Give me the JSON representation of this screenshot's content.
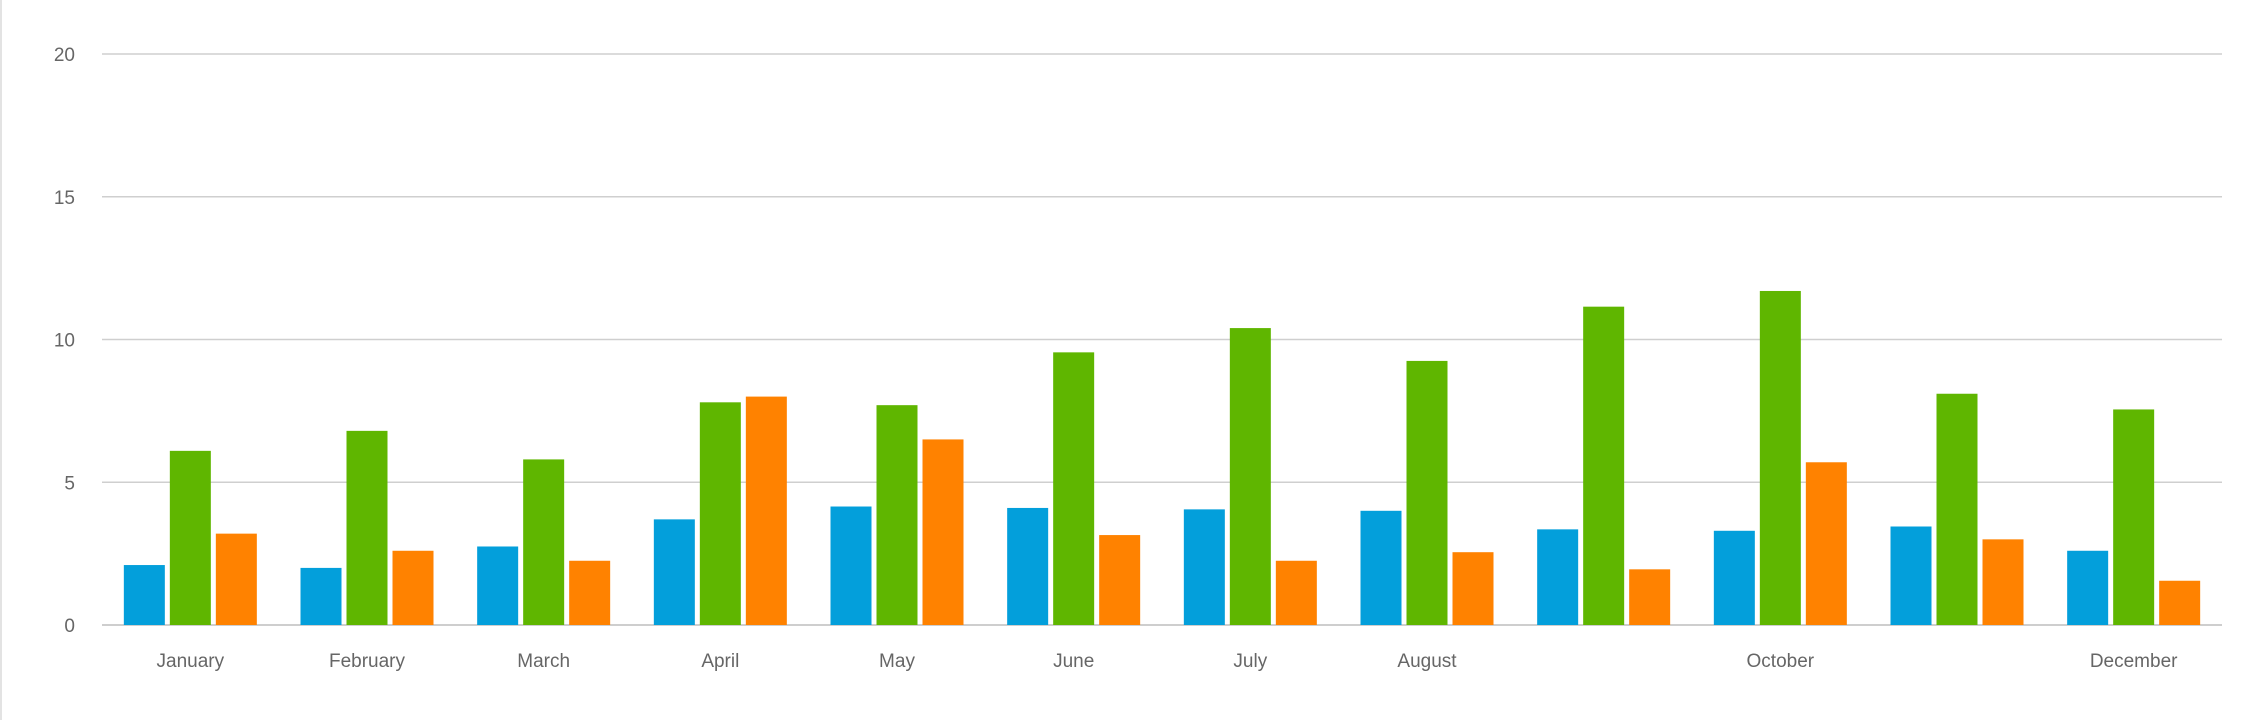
{
  "chart_data": {
    "type": "bar",
    "categories": [
      "January",
      "February",
      "March",
      "April",
      "May",
      "June",
      "July",
      "August",
      "",
      "October",
      "",
      "December"
    ],
    "series": [
      {
        "color": "#039fdb",
        "values": [
          2.1,
          2.0,
          2.75,
          3.7,
          4.15,
          4.1,
          4.05,
          4.0,
          3.35,
          3.3,
          3.45,
          2.6
        ]
      },
      {
        "color": "#5fb600",
        "values": [
          6.1,
          6.8,
          5.8,
          7.8,
          7.7,
          9.55,
          10.4,
          9.25,
          11.15,
          11.7,
          8.1,
          7.55
        ]
      },
      {
        "color": "#ff8200",
        "values": [
          3.2,
          2.6,
          2.25,
          8.0,
          6.5,
          3.15,
          2.25,
          2.55,
          1.95,
          5.7,
          3.0,
          1.55
        ]
      }
    ],
    "yticks": [
      0,
      5,
      10,
      15,
      20
    ],
    "ylim": [
      0,
      20
    ],
    "grid": true
  }
}
